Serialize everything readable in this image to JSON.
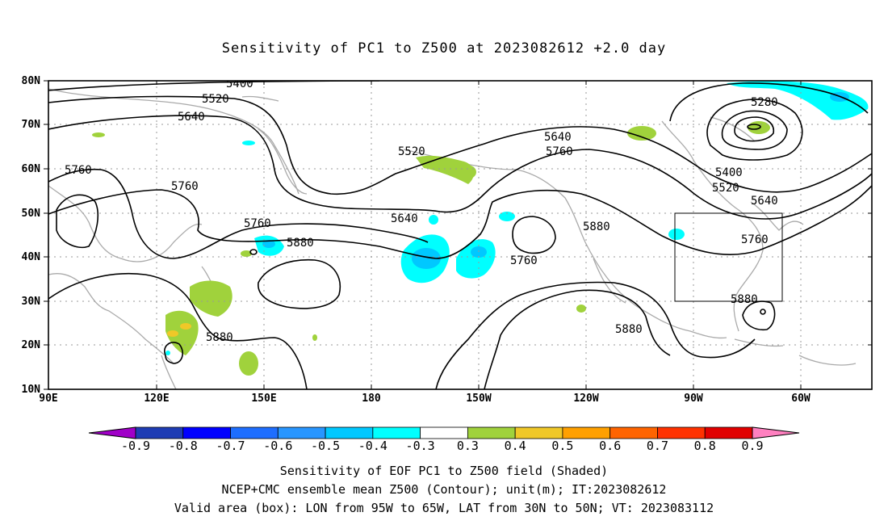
{
  "title": "Sensitivity of PC1 to Z500 at 2023082612 +2.0 day",
  "lat_labels": [
    "80N",
    "70N",
    "60N",
    "50N",
    "40N",
    "30N",
    "20N",
    "10N"
  ],
  "lon_labels": [
    "90E",
    "120E",
    "150E",
    "180",
    "150W",
    "120W",
    "90W",
    "60W"
  ],
  "contour_labels": [
    "5400",
    "5520",
    "5640",
    "5760",
    "5760",
    "5760",
    "5880",
    "5880",
    "5520",
    "5640",
    "5760",
    "5640",
    "5760",
    "5880",
    "5880",
    "5280",
    "5400",
    "5520",
    "5640",
    "5760",
    "5880"
  ],
  "colorbar": {
    "labels": [
      "-0.9",
      "-0.8",
      "-0.7",
      "-0.6",
      "-0.5",
      "-0.4",
      "-0.3",
      "0.3",
      "0.4",
      "0.5",
      "0.6",
      "0.7",
      "0.8",
      "0.9"
    ],
    "colors": [
      "#a000c8",
      "#1e3cb4",
      "#0000ff",
      "#1e6eff",
      "#2896ff",
      "#00c8ff",
      "#00ffff",
      "#ffffff",
      "#a0d23c",
      "#f0c828",
      "#ffa000",
      "#ff6400",
      "#ff3200",
      "#e10000",
      "#ff80c0"
    ]
  },
  "captions": {
    "line1": "Sensitivity of EOF PC1 to Z500 field (Shaded)",
    "line2": "NCEP+CMC ensemble mean Z500 (Contour); unit(m); IT:2023082612",
    "line3": "Valid area (box): LON from 95W to 65W, LAT from 30N to 50N; VT: 2023083112"
  }
}
